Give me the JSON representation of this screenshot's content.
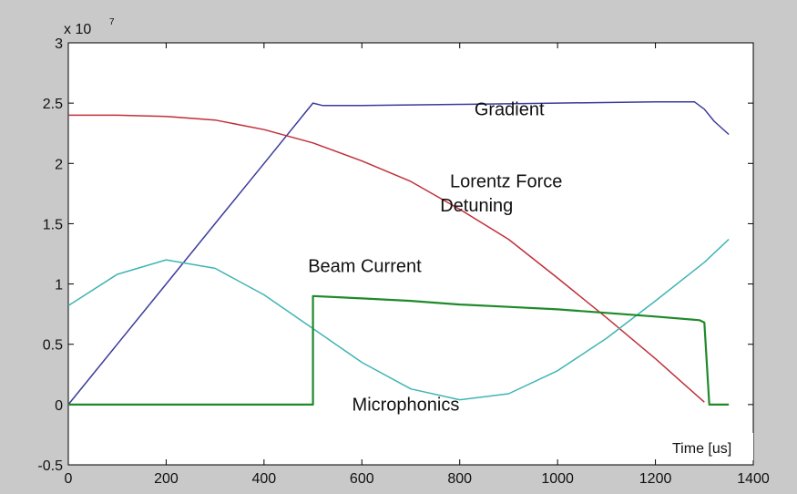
{
  "figure": {
    "background": "#c9c9c9",
    "plot_background": "#ffffff"
  },
  "chart_data": {
    "type": "line",
    "xlabel": "Time [us]",
    "ylabel": "",
    "xlim": [
      0,
      1400
    ],
    "ylim": [
      -0.5,
      3
    ],
    "y_multiplier": "x 10",
    "y_multiplier_exponent": "7",
    "x_ticks": [
      "0",
      "200",
      "400",
      "600",
      "800",
      "1000",
      "1200",
      "1400"
    ],
    "y_ticks": [
      "-0.5",
      "0",
      "0.5",
      "1",
      "1.5",
      "2",
      "2.5",
      "3"
    ],
    "grid": false,
    "series": [
      {
        "name": "Gradient",
        "color": "#3b3b9c",
        "x": [
          0,
          100,
          200,
          300,
          400,
          480,
          500,
          520,
          600,
          800,
          1000,
          1200,
          1280,
          1300,
          1320,
          1350
        ],
        "y": [
          0,
          0.5,
          1.0,
          1.5,
          2.0,
          2.4,
          2.5,
          2.48,
          2.48,
          2.49,
          2.5,
          2.51,
          2.51,
          2.45,
          2.35,
          2.24
        ]
      },
      {
        "name": "Lorentz Force Detuning",
        "color": "#c0303a",
        "x": [
          0,
          100,
          200,
          300,
          400,
          500,
          600,
          700,
          800,
          900,
          1000,
          1100,
          1200,
          1250,
          1300
        ],
        "y": [
          2.4,
          2.4,
          2.39,
          2.36,
          2.28,
          2.17,
          2.02,
          1.85,
          1.62,
          1.37,
          1.05,
          0.72,
          0.38,
          0.2,
          0.02
        ]
      },
      {
        "name": "Microphonics",
        "color": "#40b4b4",
        "x": [
          0,
          100,
          200,
          300,
          400,
          500,
          600,
          700,
          800,
          900,
          1000,
          1100,
          1200,
          1300,
          1350
        ],
        "y": [
          0.82,
          1.08,
          1.2,
          1.13,
          0.91,
          0.63,
          0.35,
          0.13,
          0.04,
          0.09,
          0.28,
          0.55,
          0.86,
          1.18,
          1.37
        ]
      },
      {
        "name": "Beam Current",
        "color": "#1f8a2a",
        "x": [
          0,
          498,
          500,
          500,
          600,
          700,
          800,
          900,
          1000,
          1100,
          1200,
          1290,
          1300,
          1310,
          1350
        ],
        "y": [
          0,
          0,
          0,
          0.9,
          0.88,
          0.86,
          0.83,
          0.81,
          0.79,
          0.76,
          0.73,
          0.7,
          0.68,
          0,
          0
        ]
      }
    ],
    "annotations": [
      {
        "text": "Gradient",
        "x": 830,
        "y": 2.4
      },
      {
        "text": "Lorentz Force",
        "x": 780,
        "y": 1.8
      },
      {
        "text": "Detuning",
        "x": 760,
        "y": 1.6
      },
      {
        "text": "Beam Current",
        "x": 490,
        "y": 1.1
      },
      {
        "text": "Microphonics",
        "x": 580,
        "y": -0.05
      }
    ]
  }
}
